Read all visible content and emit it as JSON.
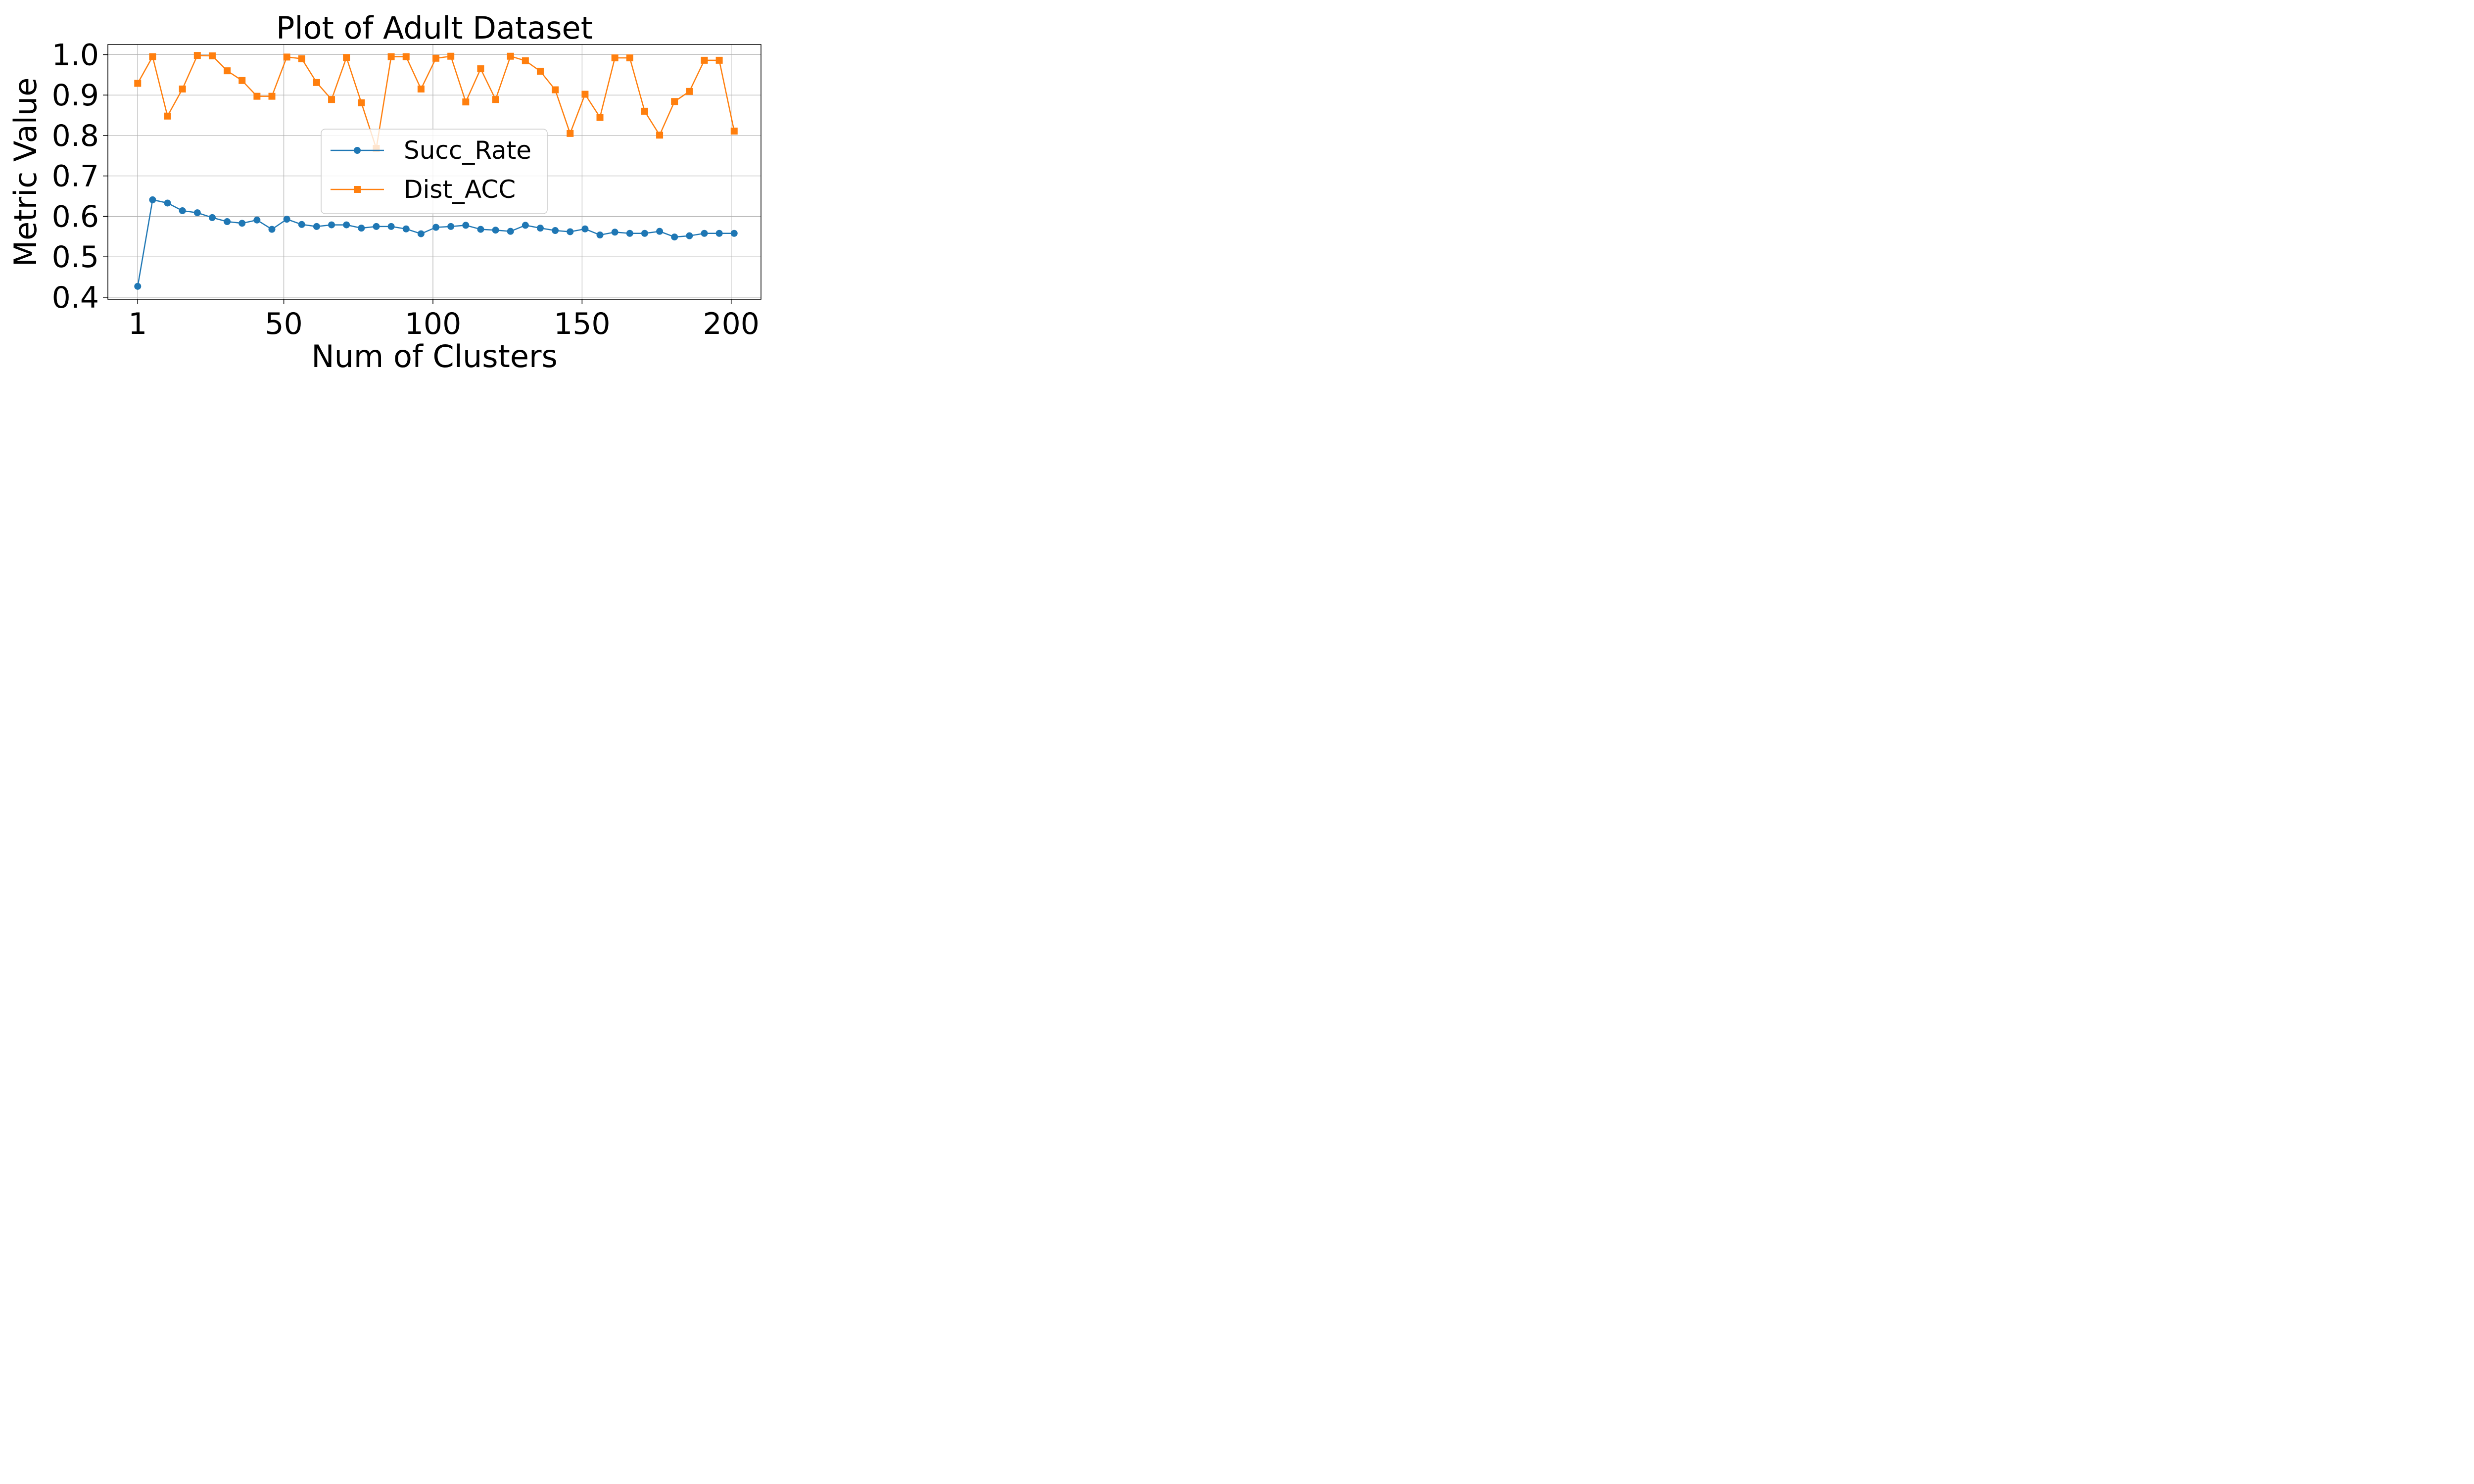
{
  "chart_data": {
    "type": "line",
    "title": "Plot of Adult Dataset",
    "xlabel": "Num of Clusters",
    "ylabel": "Metric Value",
    "xlim": [
      -9,
      210
    ],
    "ylim": [
      0.395,
      1.025
    ],
    "xticks": [
      1,
      50,
      100,
      150,
      200
    ],
    "yticks": [
      0.4,
      0.5,
      0.6,
      0.7,
      0.8,
      0.9,
      1.0
    ],
    "ytick_labels": [
      "0.4",
      "0.5",
      "0.6",
      "0.7",
      "0.8",
      "0.9",
      "1.0"
    ],
    "grid": true,
    "legend_position": "center-right",
    "x": [
      1,
      6,
      11,
      16,
      21,
      26,
      31,
      36,
      41,
      46,
      51,
      56,
      61,
      66,
      71,
      76,
      81,
      86,
      91,
      96,
      101,
      106,
      111,
      116,
      121,
      126,
      131,
      136,
      141,
      146,
      151,
      156,
      161,
      166,
      171,
      176,
      181,
      186,
      191,
      196,
      201
    ],
    "series": [
      {
        "name": "Succ_Rate",
        "color": "#1f77b4",
        "marker": "circle",
        "values": [
          0.427,
          0.641,
          0.633,
          0.614,
          0.609,
          0.597,
          0.587,
          0.583,
          0.591,
          0.568,
          0.593,
          0.58,
          0.575,
          0.579,
          0.579,
          0.571,
          0.575,
          0.575,
          0.569,
          0.557,
          0.573,
          0.575,
          0.578,
          0.568,
          0.566,
          0.563,
          0.578,
          0.571,
          0.565,
          0.562,
          0.569,
          0.554,
          0.561,
          0.558,
          0.558,
          0.563,
          0.549,
          0.552,
          0.558,
          0.558,
          0.558
        ]
      },
      {
        "name": "Dist_ACC",
        "color": "#ff7f0e",
        "marker": "square",
        "values": [
          0.929,
          0.995,
          0.848,
          0.915,
          0.998,
          0.997,
          0.96,
          0.936,
          0.897,
          0.897,
          0.994,
          0.99,
          0.931,
          0.889,
          0.993,
          0.881,
          0.768,
          0.995,
          0.995,
          0.915,
          0.991,
          0.996,
          0.883,
          0.965,
          0.889,
          0.996,
          0.985,
          0.959,
          0.913,
          0.805,
          0.902,
          0.845,
          0.992,
          0.992,
          0.86,
          0.801,
          0.884,
          0.909,
          0.986,
          0.986,
          0.811
        ]
      }
    ]
  }
}
